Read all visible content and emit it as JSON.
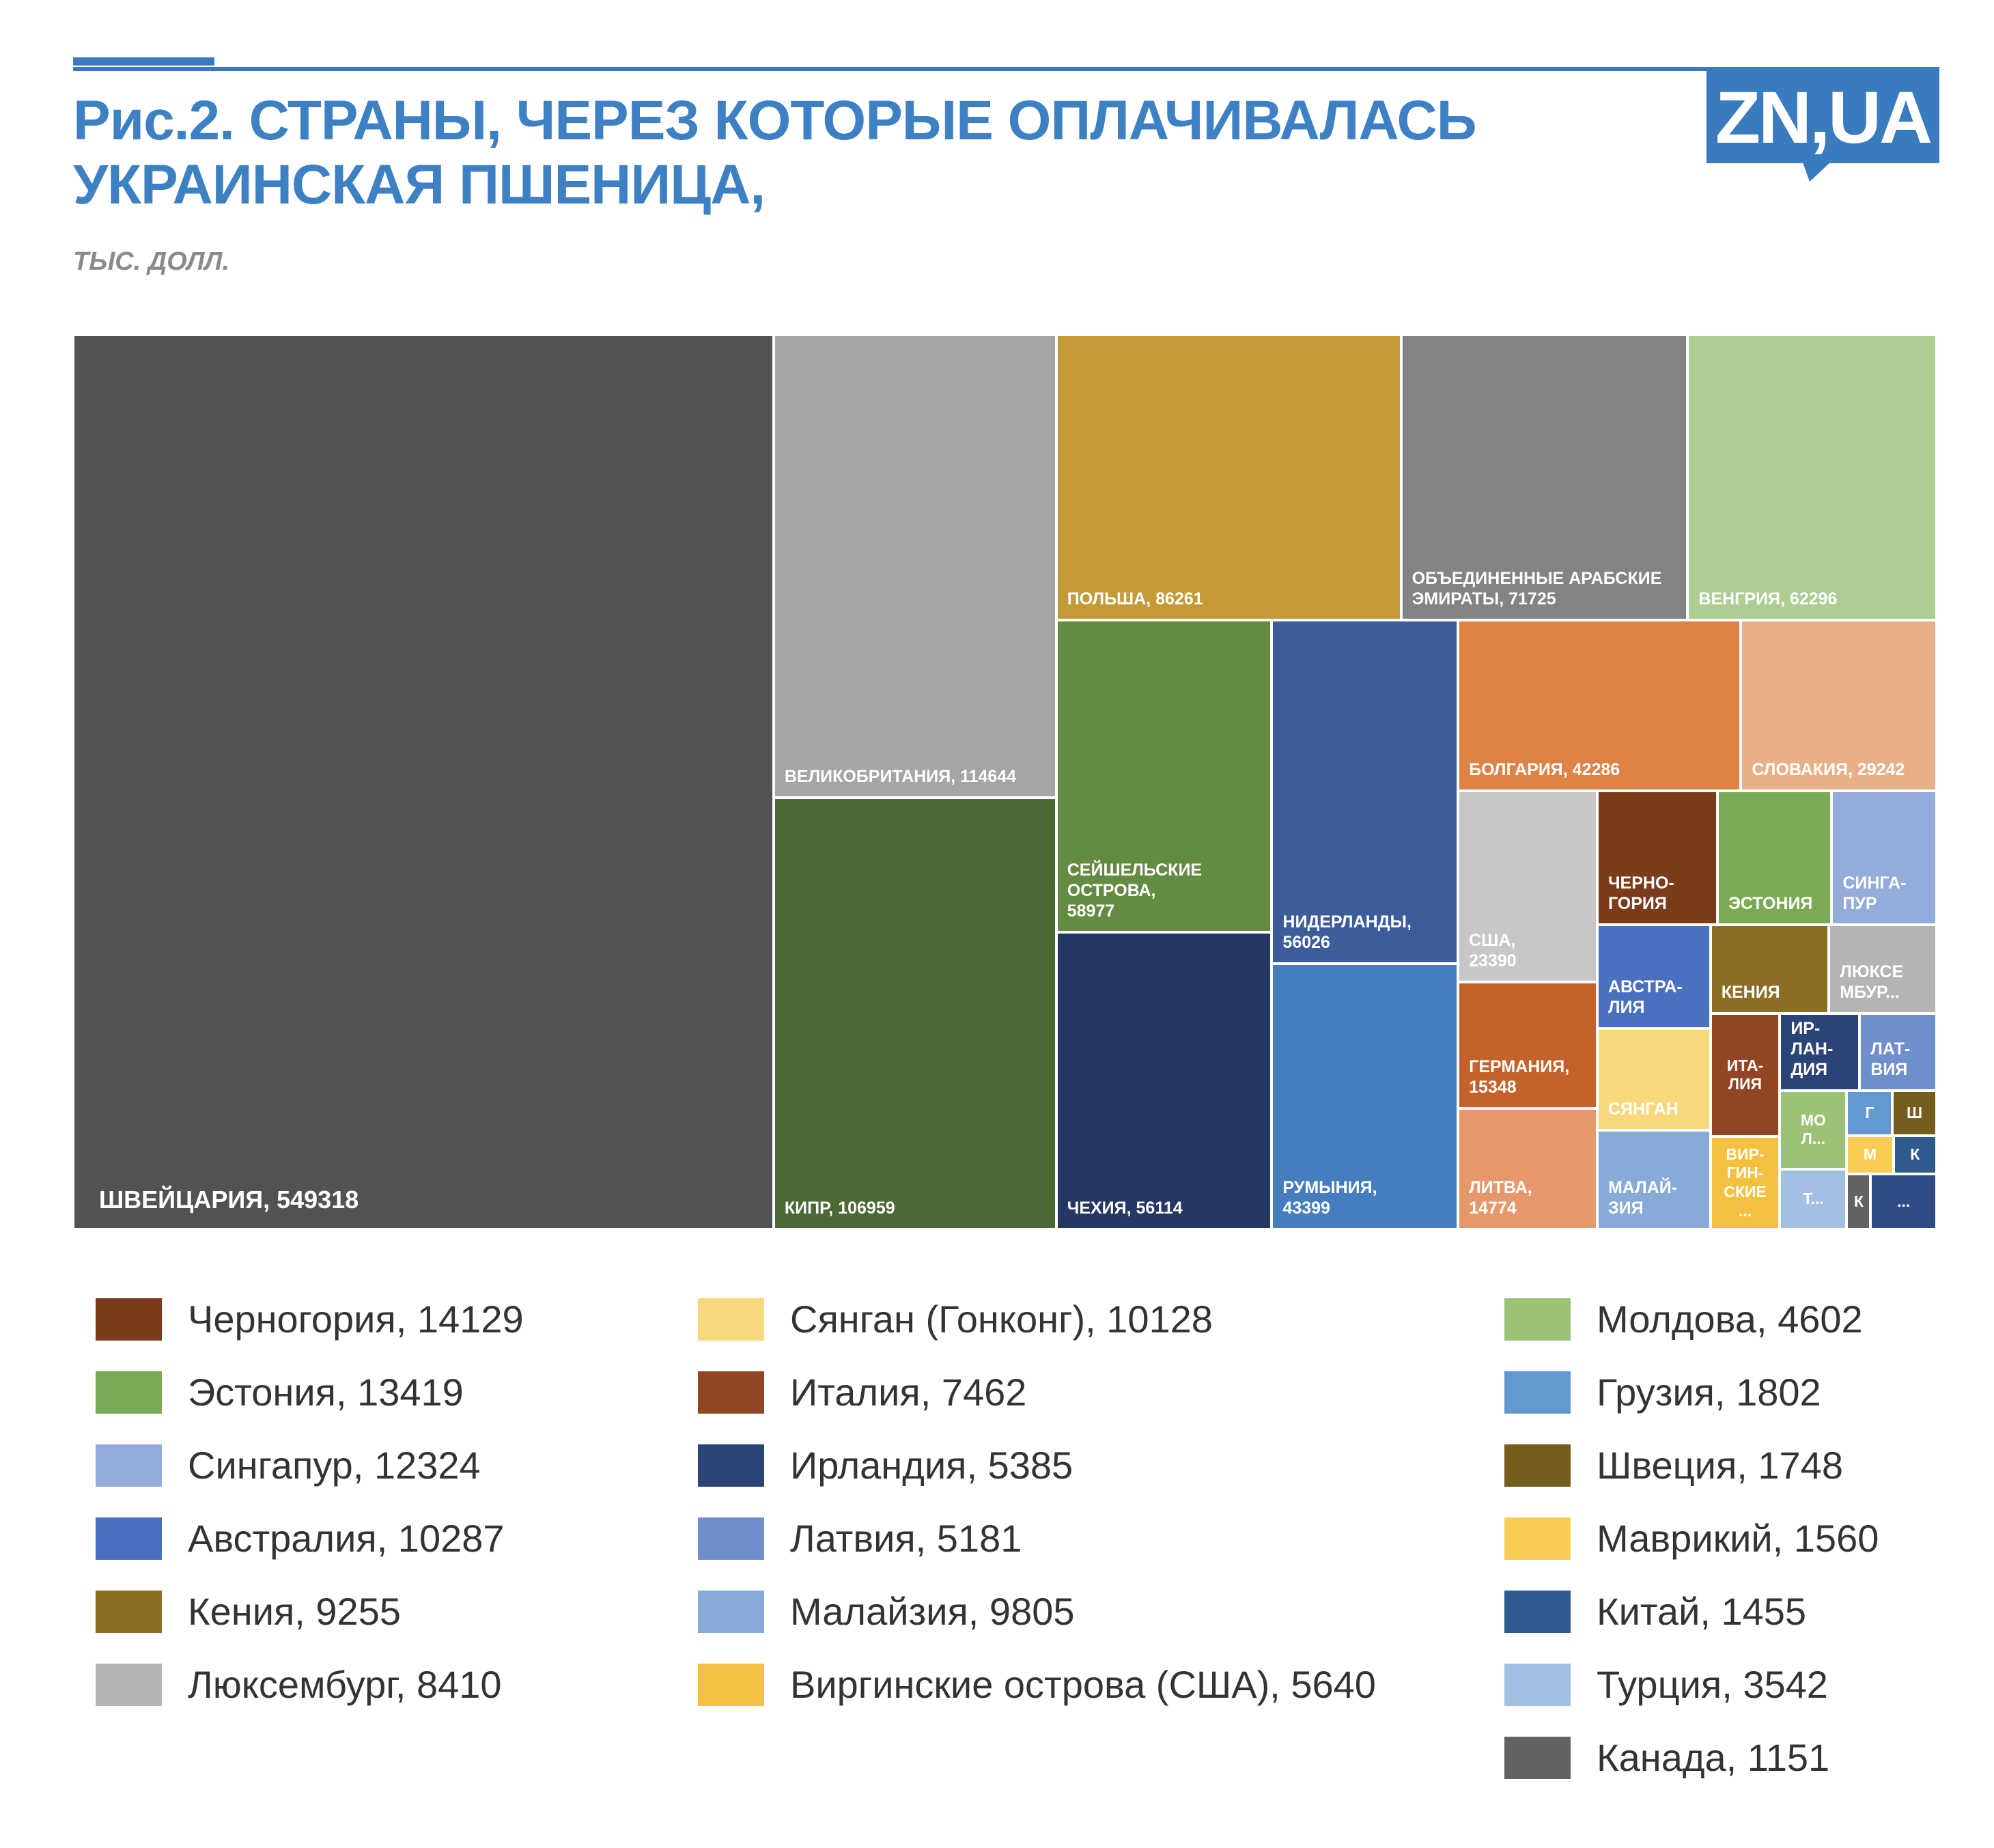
{
  "chart_data": {
    "type": "treemap",
    "title": "Рис.2. СТРАНЫ, ЧЕРЕЗ КОТОРЫЕ ОПЛАЧИВАЛАСЬ\nУКРАИНСКАЯ ПШЕНИЦА,",
    "subtitle": "ТЫС. ДОЛЛ.",
    "logo": "ZN,UA",
    "items": [
      {
        "label": "ШВЕЙЦАРИЯ, 549318",
        "value": 549318,
        "color": "#525252"
      },
      {
        "label": "ВЕЛИКОБРИТАНИЯ, 114644",
        "value": 114644,
        "color": "#a5a5a5"
      },
      {
        "label": "КИПР, 106959",
        "value": 106959,
        "color": "#4b6935"
      },
      {
        "label": "ПОЛЬША, 86261",
        "value": 86261,
        "color": "#c49a37"
      },
      {
        "label": "ОБЪЕДИНЕННЫЕ АРАБСКИЕ\nЭМИРАТЫ, 71725",
        "value": 71725,
        "color": "#838383"
      },
      {
        "label": "ВЕНГРИЯ, 62296",
        "value": 62296,
        "color": "#adcd92"
      },
      {
        "label": "СЕЙШЕЛЬСКИЕ ОСТРОВА,\n58977",
        "value": 58977,
        "color": "#648b42"
      },
      {
        "label": "НИДЕРЛАНДЫ,\n56026",
        "value": 56026,
        "color": "#3d5c9b"
      },
      {
        "label": "ЧЕХИЯ, 56114",
        "value": 56114,
        "color": "#253763"
      },
      {
        "label": "РУМЫНИЯ,\n43399",
        "value": 43399,
        "color": "#467dbf"
      },
      {
        "label": "БОЛГАРИЯ, 42286",
        "value": 42286,
        "color": "#de8245"
      },
      {
        "label": "СЛОВАКИЯ, 29242",
        "value": 29242,
        "color": "#e8b088"
      },
      {
        "label": "США,\n23390",
        "value": 23390,
        "color": "#c7c7c7"
      },
      {
        "label": "ГЕРМАНИЯ,\n15348",
        "value": 15348,
        "color": "#c5622b"
      },
      {
        "label": "ЛИТВА,\n14774",
        "value": 14774,
        "color": "#e5996a"
      },
      {
        "label": "ЧЕРНО-\nГОРИЯ",
        "legend": "Черногория, 14129",
        "value": 14129,
        "color": "#7b3c1c"
      },
      {
        "label": "ЭСТОНИЯ",
        "legend": "Эстония, 13419",
        "value": 13419,
        "color": "#7aab54"
      },
      {
        "label": "СИНГА-\nПУР",
        "legend": "Сингапур, 12324",
        "value": 12324,
        "color": "#93acd9"
      },
      {
        "label": "АВСТРА-\nЛИЯ",
        "legend": "Австралия, 10287",
        "value": 10287,
        "color": "#4a70c0"
      },
      {
        "label": "КЕНИЯ",
        "legend": "Кения, 9255",
        "value": 9255,
        "color": "#8e6e24"
      },
      {
        "label": "ЛЮКСЕ\nМБУР...",
        "legend": "Люксембург, 8410",
        "value": 8410,
        "color": "#b4b4b4"
      },
      {
        "label": "СЯНГАН",
        "legend": "Сянган (Гонконг), 10128",
        "value": 10128,
        "color": "#f7d97c"
      },
      {
        "label": "ИТА-\nЛИЯ",
        "legend": "Италия, 7462",
        "value": 7462,
        "color": "#924522"
      },
      {
        "label": "ИР-\nЛАН-\nДИЯ",
        "legend": "Ирландия, 5385",
        "value": 5385,
        "color": "#2b4478"
      },
      {
        "label": "ЛАТ-\nВИЯ",
        "legend": "Латвия, 5181",
        "value": 5181,
        "color": "#6e8ecc"
      },
      {
        "label": "МАЛАЙ-\nЗИЯ",
        "legend": "Малайзия, 9805",
        "value": 9805,
        "color": "#88aad8"
      },
      {
        "label": "ВИР-\nГИН-\nСКИЕ\n...",
        "legend": "Виргинские острова (США), 5640",
        "value": 5640,
        "color": "#f5c040"
      },
      {
        "label": "МО\nЛ...",
        "legend": "Молдова, 4602",
        "value": 4602,
        "color": "#9cc278"
      },
      {
        "label": "Г",
        "legend": "Грузия, 1802",
        "value": 1802,
        "color": "#6498d0"
      },
      {
        "label": "Ш",
        "legend": "Швеция, 1748",
        "value": 1748,
        "color": "#755d1e"
      },
      {
        "label": "М",
        "legend": "Маврикий, 1560",
        "value": 1560,
        "color": "#f8cc55"
      },
      {
        "label": "К",
        "legend": "Китай, 1455",
        "value": 1455,
        "color": "#2f5a8d"
      },
      {
        "label": "Т...",
        "legend": "Турция, 3542",
        "value": 3542,
        "color": "#a2c0e3"
      },
      {
        "label": "К",
        "legend": "Канада, 1151",
        "value": 1151,
        "color": "#626262"
      },
      {
        "label": "...",
        "value": 3200,
        "color": "#2e4c85"
      }
    ]
  }
}
